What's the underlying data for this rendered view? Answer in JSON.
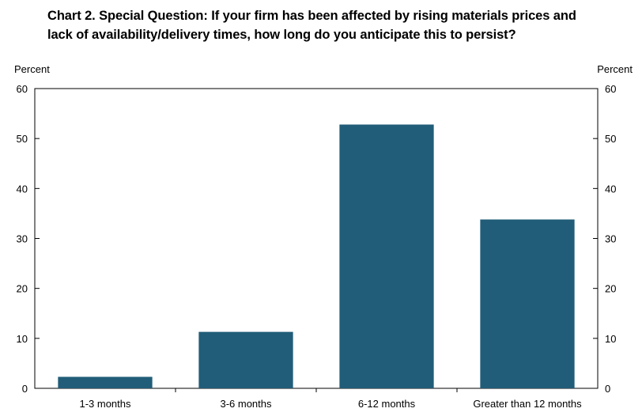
{
  "title_lines": [
    "Chart 2. Special Question: If your firm has been affected by rising materials prices and",
    "lack of availability/delivery times, how long do you anticipate this to persist?"
  ],
  "chart_data": {
    "type": "bar",
    "title": "Chart 2. Special Question: If your firm has been affected by rising materials prices and lack of availability/delivery times, how long do you anticipate this to persist?",
    "categories": [
      "1-3 months",
      "3-6 months",
      "6-12 months",
      "Greater than 12 months"
    ],
    "values": [
      2.3,
      11.3,
      52.8,
      33.8
    ],
    "ylabel_left": "Percent",
    "ylabel_right": "Percent",
    "ylim": [
      0,
      60
    ],
    "yticks": [
      0,
      10,
      20,
      30,
      40,
      50,
      60
    ],
    "bar_color": "#215d78",
    "grid": false,
    "legend": "none"
  }
}
